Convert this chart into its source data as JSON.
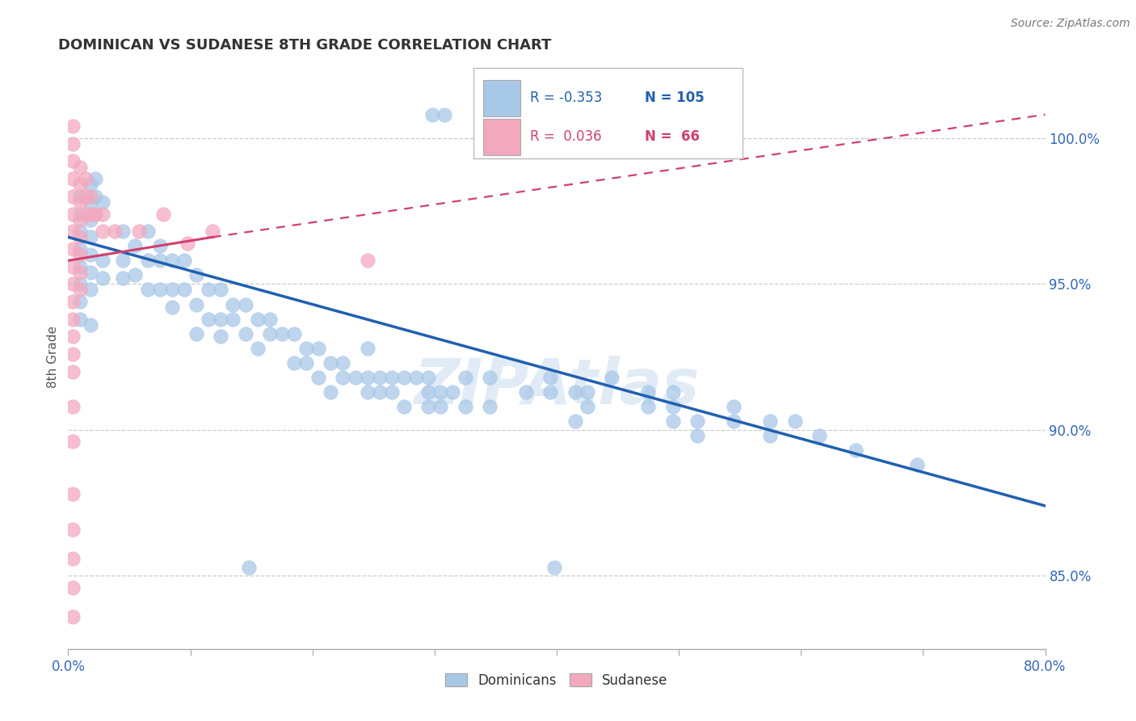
{
  "title": "DOMINICAN VS SUDANESE 8TH GRADE CORRELATION CHART",
  "source": "Source: ZipAtlas.com",
  "ylabel": "8th Grade",
  "ytick_labels": [
    "100.0%",
    "95.0%",
    "90.0%",
    "85.0%"
  ],
  "ytick_values": [
    1.0,
    0.95,
    0.9,
    0.85
  ],
  "xlim": [
    0.0,
    0.8
  ],
  "ylim": [
    0.825,
    1.025
  ],
  "legend_r_blue": "-0.353",
  "legend_n_blue": "105",
  "legend_r_pink": "0.036",
  "legend_n_pink": "66",
  "legend_label_blue": "Dominicans",
  "legend_label_pink": "Sudanese",
  "watermark": "ZIPAtlas",
  "blue_color": "#A8C8E8",
  "pink_color": "#F4A8BE",
  "blue_line_color": "#2060B0",
  "pink_line_color": "#D04070",
  "blue_scatter": [
    [
      0.01,
      0.98
    ],
    [
      0.01,
      0.974
    ],
    [
      0.01,
      0.968
    ],
    [
      0.01,
      0.962
    ],
    [
      0.01,
      0.956
    ],
    [
      0.01,
      0.95
    ],
    [
      0.01,
      0.944
    ],
    [
      0.01,
      0.938
    ],
    [
      0.018,
      0.984
    ],
    [
      0.018,
      0.978
    ],
    [
      0.018,
      0.972
    ],
    [
      0.018,
      0.966
    ],
    [
      0.018,
      0.96
    ],
    [
      0.018,
      0.954
    ],
    [
      0.018,
      0.948
    ],
    [
      0.018,
      0.936
    ],
    [
      0.022,
      0.986
    ],
    [
      0.022,
      0.98
    ],
    [
      0.022,
      0.974
    ],
    [
      0.028,
      0.978
    ],
    [
      0.028,
      0.958
    ],
    [
      0.028,
      0.952
    ],
    [
      0.045,
      0.968
    ],
    [
      0.045,
      0.958
    ],
    [
      0.045,
      0.952
    ],
    [
      0.055,
      0.963
    ],
    [
      0.055,
      0.953
    ],
    [
      0.065,
      0.968
    ],
    [
      0.065,
      0.958
    ],
    [
      0.065,
      0.948
    ],
    [
      0.075,
      0.963
    ],
    [
      0.075,
      0.958
    ],
    [
      0.075,
      0.948
    ],
    [
      0.085,
      0.958
    ],
    [
      0.085,
      0.948
    ],
    [
      0.085,
      0.942
    ],
    [
      0.095,
      0.958
    ],
    [
      0.095,
      0.948
    ],
    [
      0.105,
      0.953
    ],
    [
      0.105,
      0.943
    ],
    [
      0.105,
      0.933
    ],
    [
      0.115,
      0.948
    ],
    [
      0.115,
      0.938
    ],
    [
      0.125,
      0.948
    ],
    [
      0.125,
      0.938
    ],
    [
      0.125,
      0.932
    ],
    [
      0.135,
      0.943
    ],
    [
      0.135,
      0.938
    ],
    [
      0.145,
      0.943
    ],
    [
      0.145,
      0.933
    ],
    [
      0.155,
      0.938
    ],
    [
      0.155,
      0.928
    ],
    [
      0.165,
      0.938
    ],
    [
      0.165,
      0.933
    ],
    [
      0.175,
      0.933
    ],
    [
      0.185,
      0.933
    ],
    [
      0.185,
      0.923
    ],
    [
      0.195,
      0.928
    ],
    [
      0.195,
      0.923
    ],
    [
      0.205,
      0.928
    ],
    [
      0.205,
      0.918
    ],
    [
      0.215,
      0.923
    ],
    [
      0.215,
      0.913
    ],
    [
      0.225,
      0.923
    ],
    [
      0.225,
      0.918
    ],
    [
      0.235,
      0.918
    ],
    [
      0.245,
      0.928
    ],
    [
      0.245,
      0.918
    ],
    [
      0.245,
      0.913
    ],
    [
      0.255,
      0.918
    ],
    [
      0.255,
      0.913
    ],
    [
      0.265,
      0.918
    ],
    [
      0.265,
      0.913
    ],
    [
      0.275,
      0.918
    ],
    [
      0.275,
      0.908
    ],
    [
      0.285,
      0.918
    ],
    [
      0.295,
      0.918
    ],
    [
      0.295,
      0.913
    ],
    [
      0.295,
      0.908
    ],
    [
      0.305,
      0.913
    ],
    [
      0.305,
      0.908
    ],
    [
      0.315,
      0.913
    ],
    [
      0.325,
      0.918
    ],
    [
      0.325,
      0.908
    ],
    [
      0.345,
      0.918
    ],
    [
      0.345,
      0.908
    ],
    [
      0.375,
      0.913
    ],
    [
      0.395,
      0.918
    ],
    [
      0.395,
      0.913
    ],
    [
      0.415,
      0.913
    ],
    [
      0.415,
      0.903
    ],
    [
      0.425,
      0.913
    ],
    [
      0.425,
      0.908
    ],
    [
      0.445,
      0.918
    ],
    [
      0.475,
      0.913
    ],
    [
      0.475,
      0.908
    ],
    [
      0.495,
      0.913
    ],
    [
      0.495,
      0.908
    ],
    [
      0.495,
      0.903
    ],
    [
      0.515,
      0.903
    ],
    [
      0.515,
      0.898
    ],
    [
      0.545,
      0.908
    ],
    [
      0.545,
      0.903
    ],
    [
      0.575,
      0.903
    ],
    [
      0.575,
      0.898
    ],
    [
      0.595,
      0.903
    ],
    [
      0.615,
      0.898
    ],
    [
      0.645,
      0.893
    ],
    [
      0.695,
      0.888
    ],
    [
      0.148,
      0.853
    ],
    [
      0.398,
      0.853
    ],
    [
      0.298,
      1.008
    ],
    [
      0.308,
      1.008
    ]
  ],
  "pink_scatter": [
    [
      0.004,
      1.004
    ],
    [
      0.004,
      0.998
    ],
    [
      0.004,
      0.992
    ],
    [
      0.004,
      0.986
    ],
    [
      0.004,
      0.98
    ],
    [
      0.004,
      0.974
    ],
    [
      0.004,
      0.968
    ],
    [
      0.004,
      0.962
    ],
    [
      0.004,
      0.956
    ],
    [
      0.004,
      0.95
    ],
    [
      0.004,
      0.944
    ],
    [
      0.004,
      0.938
    ],
    [
      0.004,
      0.932
    ],
    [
      0.004,
      0.926
    ],
    [
      0.004,
      0.92
    ],
    [
      0.01,
      0.99
    ],
    [
      0.01,
      0.984
    ],
    [
      0.01,
      0.978
    ],
    [
      0.01,
      0.972
    ],
    [
      0.01,
      0.966
    ],
    [
      0.01,
      0.96
    ],
    [
      0.01,
      0.954
    ],
    [
      0.01,
      0.948
    ],
    [
      0.014,
      0.986
    ],
    [
      0.014,
      0.98
    ],
    [
      0.014,
      0.974
    ],
    [
      0.018,
      0.98
    ],
    [
      0.018,
      0.974
    ],
    [
      0.022,
      0.974
    ],
    [
      0.028,
      0.974
    ],
    [
      0.028,
      0.968
    ],
    [
      0.038,
      0.968
    ],
    [
      0.058,
      0.968
    ],
    [
      0.078,
      0.974
    ],
    [
      0.098,
      0.964
    ],
    [
      0.118,
      0.968
    ],
    [
      0.004,
      0.908
    ],
    [
      0.004,
      0.896
    ],
    [
      0.004,
      0.878
    ],
    [
      0.004,
      0.866
    ],
    [
      0.245,
      0.958
    ],
    [
      0.004,
      0.856
    ],
    [
      0.004,
      0.846
    ],
    [
      0.004,
      0.836
    ]
  ],
  "blue_trendline": [
    [
      0.0,
      0.966
    ],
    [
      0.8,
      0.874
    ]
  ],
  "pink_trendline_solid": [
    [
      0.0,
      0.958
    ],
    [
      0.118,
      0.966
    ]
  ],
  "pink_trendline_dashed": [
    [
      0.118,
      0.966
    ],
    [
      0.8,
      1.008
    ]
  ],
  "xtick_positions": [
    0.0,
    0.1,
    0.2,
    0.3,
    0.4,
    0.5,
    0.6,
    0.7,
    0.8
  ]
}
